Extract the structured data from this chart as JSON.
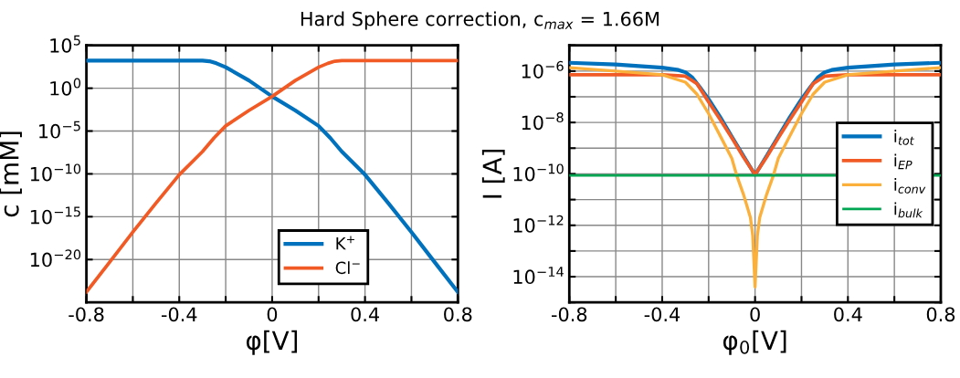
{
  "chart_data": [
    {
      "type": "line",
      "title": "Hard Sphere correction, c$_{max}$ = 1.66M",
      "xlabel": "φ[V]",
      "ylabel": "c [mM]",
      "log": "y",
      "grid": true,
      "legend": "bottom right",
      "xlim": [
        -0.8,
        0.8
      ],
      "xticks": [
        -0.8,
        {
          "value": -0.6,
          "label": null
        },
        -0.4,
        {
          "value": -0.2,
          "label": null
        },
        0,
        {
          "value": 0.2,
          "label": null
        },
        0.4,
        {
          "value": 0.6,
          "label": null
        },
        0.8
      ],
      "ylim": [
        1e-25,
        100000.0
      ],
      "yticks": [
        {
          "value": 100000.0,
          "label": "10$^{5}$"
        },
        {
          "value": 1,
          "label": "10$^{0}$"
        },
        {
          "value": 1e-05,
          "label": "10$^{−5}$"
        },
        {
          "value": 1e-10,
          "label": "10$^{−10}$"
        },
        {
          "value": 1e-15,
          "label": "10$^{−15}$"
        },
        {
          "value": 1e-20,
          "label": "10$^{−20}$"
        }
      ],
      "series": [
        {
          "name": "K$^{+}$",
          "color": "#0072bd",
          "x": [
            -0.8,
            -0.3,
            -0.27,
            -0.24,
            -0.2,
            -0.1,
            0,
            0.1,
            0.2,
            0.25,
            0.3,
            0.4,
            0.5,
            0.6,
            0.7,
            0.8
          ],
          "values": [
            1660,
            1660,
            1400,
            800,
            280,
            8,
            0.11,
            0.0025,
            4e-05,
            1.6e-06,
            4e-08,
            8e-11,
            4e-14,
            1.6e-17,
            5e-21,
            1.6e-24
          ]
        },
        {
          "name": "Cl$^{−}$",
          "color": "#f15a24",
          "x": [
            -0.8,
            -0.7,
            -0.6,
            -0.5,
            -0.4,
            -0.3,
            -0.25,
            -0.2,
            -0.1,
            0,
            0.1,
            0.2,
            0.24,
            0.27,
            0.3,
            0.8
          ],
          "values": [
            1.6e-24,
            5e-21,
            1.6e-17,
            4e-14,
            8e-11,
            4e-08,
            1.6e-06,
            4e-05,
            0.0025,
            0.11,
            8,
            280,
            800,
            1400,
            1660,
            1660
          ]
        }
      ]
    },
    {
      "type": "line",
      "xlabel": "φ$_{0}$[V]",
      "ylabel": "I [A]",
      "log": "y",
      "grid": true,
      "legend": "right",
      "xlim": [
        -0.8,
        0.8
      ],
      "xticks": [
        -0.8,
        {
          "value": -0.6,
          "label": null
        },
        -0.4,
        {
          "value": -0.2,
          "label": null
        },
        0,
        {
          "value": 0.2,
          "label": null
        },
        0.4,
        {
          "value": 0.6,
          "label": null
        },
        0.8
      ],
      "ylim": [
        1e-15,
        1e-05
      ],
      "yticks": [
        {
          "value": 1e-05,
          "label": null
        },
        {
          "value": 1e-06,
          "label": "10$^{−6}$"
        },
        {
          "value": 1e-07,
          "label": null
        },
        {
          "value": 1e-08,
          "label": "10$^{−8}$"
        },
        {
          "value": 1e-09,
          "label": null
        },
        {
          "value": 1e-10,
          "label": "10$^{−10}$"
        },
        {
          "value": 1e-11,
          "label": null
        },
        {
          "value": 1e-12,
          "label": "10$^{−12}$"
        },
        {
          "value": 1e-13,
          "label": null
        },
        {
          "value": 1e-14,
          "label": "10$^{−14}$"
        },
        {
          "value": 1e-15,
          "label": null
        }
      ],
      "series": [
        {
          "name": "i$_{tot}$",
          "color": "#0072bd",
          "x": [
            -0.8,
            -0.6,
            -0.4,
            -0.33,
            -0.3,
            -0.27,
            -0.24,
            -0.2,
            -0.15,
            -0.1,
            -0.05,
            -0.02,
            0,
            0.02,
            0.05,
            0.1,
            0.15,
            0.2,
            0.24,
            0.27,
            0.3,
            0.33,
            0.4,
            0.6,
            0.8
          ],
          "values": [
            2.1e-06,
            1.8e-06,
            1.35e-06,
            1.1e-06,
            9e-07,
            5.6e-07,
            2.5e-07,
            8e-08,
            1.6e-08,
            2.8e-09,
            5e-10,
            1.8e-10,
            9.3e-11,
            1.8e-10,
            5e-10,
            2.8e-09,
            1.6e-08,
            8e-08,
            2.5e-07,
            5.6e-07,
            9e-07,
            1.1e-06,
            1.35e-06,
            1.8e-06,
            2.1e-06
          ]
        },
        {
          "name": "i$_{EP}$",
          "color": "#f15a24",
          "x": [
            -0.8,
            -0.4,
            -0.3,
            -0.25,
            -0.2,
            -0.15,
            -0.1,
            -0.05,
            0,
            0.05,
            0.1,
            0.15,
            0.2,
            0.25,
            0.3,
            0.4,
            0.8
          ],
          "values": [
            7.2e-07,
            7.2e-07,
            6.3e-07,
            3.2e-07,
            6.3e-08,
            1.3e-08,
            2.5e-09,
            4.5e-10,
            9.3e-11,
            4.5e-10,
            2.5e-09,
            1.3e-08,
            6.3e-08,
            3.2e-07,
            6.3e-07,
            7.2e-07,
            7.2e-07
          ]
        },
        {
          "name": "i$_{conv}$",
          "color": "#fbb03b",
          "x": [
            -0.8,
            -0.6,
            -0.4,
            -0.3,
            -0.25,
            -0.2,
            -0.15,
            -0.1,
            -0.08,
            -0.05,
            -0.02,
            -0.01,
            0,
            0.01,
            0.02,
            0.05,
            0.08,
            0.1,
            0.15,
            0.2,
            0.25,
            0.3,
            0.4,
            0.6,
            0.8
          ],
          "values": [
            1.35e-06,
            1e-06,
            7.2e-07,
            3.7e-07,
            1.25e-07,
            2.2e-08,
            3e-09,
            4e-10,
            9.3e-11,
            1.6e-11,
            2e-12,
            4e-13,
            4e-15,
            4e-13,
            2e-12,
            1.6e-11,
            9.3e-11,
            4e-10,
            3e-09,
            2.2e-08,
            1.25e-07,
            3.7e-07,
            7.2e-07,
            1e-06,
            1.35e-06
          ]
        },
        {
          "name": "i$_{bulk}$",
          "color": "#00a651",
          "x": [
            -0.8,
            0.8
          ],
          "values": [
            8.7e-11,
            8.7e-11
          ]
        }
      ]
    }
  ]
}
